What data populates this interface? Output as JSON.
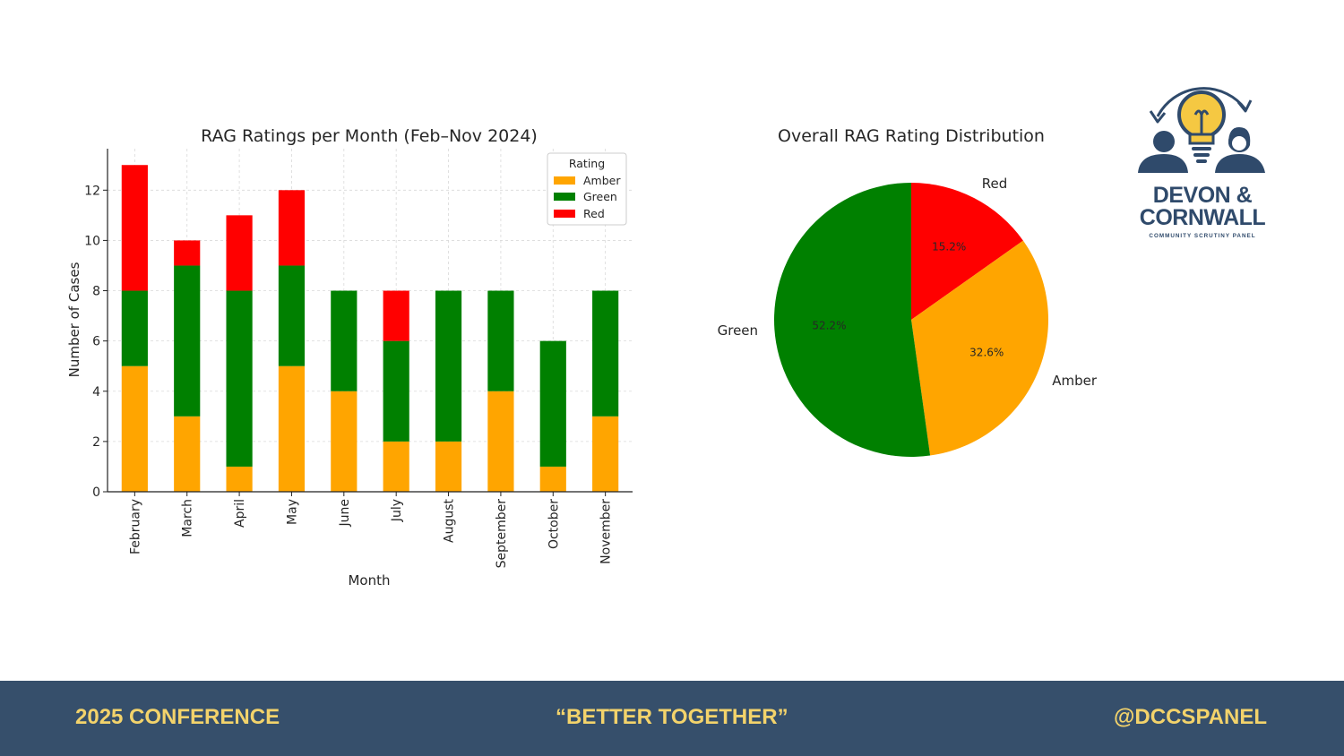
{
  "chart_data": [
    {
      "type": "bar",
      "stacked": true,
      "title": "RAG Ratings per Month (Feb–Nov 2024)",
      "xlabel": "Month",
      "ylabel": "Number of Cases",
      "categories": [
        "February",
        "March",
        "April",
        "May",
        "June",
        "July",
        "August",
        "September",
        "October",
        "November"
      ],
      "series": [
        {
          "name": "Amber",
          "color": "#ffa500",
          "values": [
            5,
            3,
            1,
            5,
            4,
            2,
            2,
            4,
            1,
            3
          ]
        },
        {
          "name": "Green",
          "color": "#008000",
          "values": [
            3,
            6,
            7,
            4,
            4,
            4,
            6,
            4,
            5,
            5
          ]
        },
        {
          "name": "Red",
          "color": "#ff0000",
          "values": [
            5,
            1,
            3,
            3,
            0,
            2,
            0,
            0,
            0,
            0
          ]
        }
      ],
      "ylim": [
        0,
        13.65
      ],
      "yticks": [
        0,
        2,
        4,
        6,
        8,
        10,
        12
      ],
      "grid": true,
      "legend": {
        "title": "Rating",
        "position": "top-right"
      }
    },
    {
      "type": "pie",
      "title": "Overall RAG Rating Distribution",
      "slices": [
        {
          "label": "Red",
          "value": 15.2,
          "pct_label": "15.2%",
          "color": "#ff0000"
        },
        {
          "label": "Amber",
          "value": 32.6,
          "pct_label": "32.6%",
          "color": "#ffa500"
        },
        {
          "label": "Green",
          "value": 52.2,
          "pct_label": "52.2%",
          "color": "#008000"
        }
      ],
      "start": "top",
      "direction": "clockwise"
    }
  ],
  "logo": {
    "line1": "DEVON &",
    "line2": "CORNWALL",
    "subtitle": "COMMUNITY SCRUTINY PANEL",
    "icon": "lightbulb-with-people-icon",
    "color": "#2f4a6b",
    "accent": "#f5c842"
  },
  "footer": {
    "left": "2025 CONFERENCE",
    "center": "“BETTER TOGETHER”",
    "right": "@DCCSPANEL",
    "background": "#364f6b",
    "text_color": "#f3d36b"
  }
}
